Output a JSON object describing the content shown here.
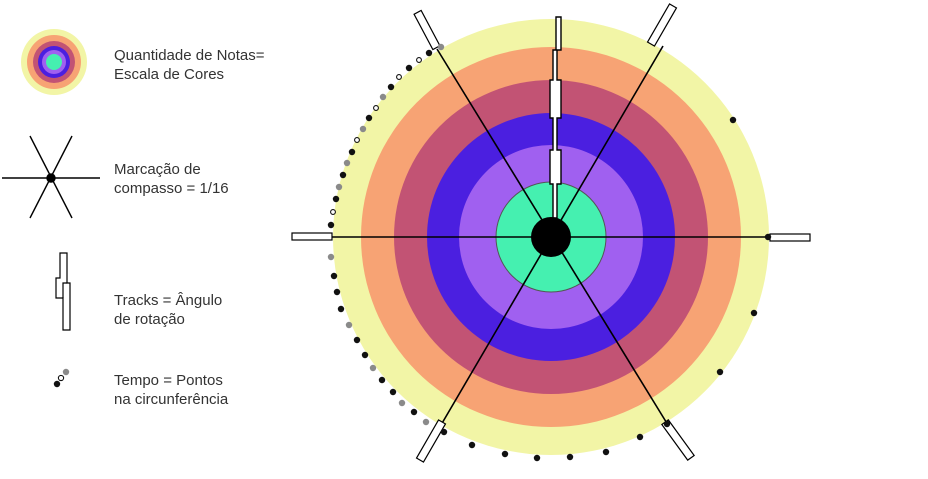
{
  "legend": [
    {
      "icon": "color-scale-icon",
      "lines": [
        "Quantidade de Notas=",
        "Escala de Cores"
      ]
    },
    {
      "icon": "compass-marking-icon",
      "lines": [
        "Marcação de",
        "compasso = 1/16"
      ]
    },
    {
      "icon": "track-rotation-icon",
      "lines": [
        "Tracks = Ângulo",
        "de rotação"
      ]
    },
    {
      "icon": "tempo-points-icon",
      "lines": [
        "Tempo = Pontos",
        "na circunferência"
      ]
    }
  ],
  "colors": {
    "ring_1": "#f2f5a6",
    "ring_2": "#f7a374",
    "ring_3": "#c25374",
    "ring_4": "#4b1fe0",
    "ring_5": "#a060f0",
    "center": "#45f0b0",
    "hub": "#000000",
    "dot_black": "#111111",
    "dot_grey": "#8a8a8a"
  }
}
